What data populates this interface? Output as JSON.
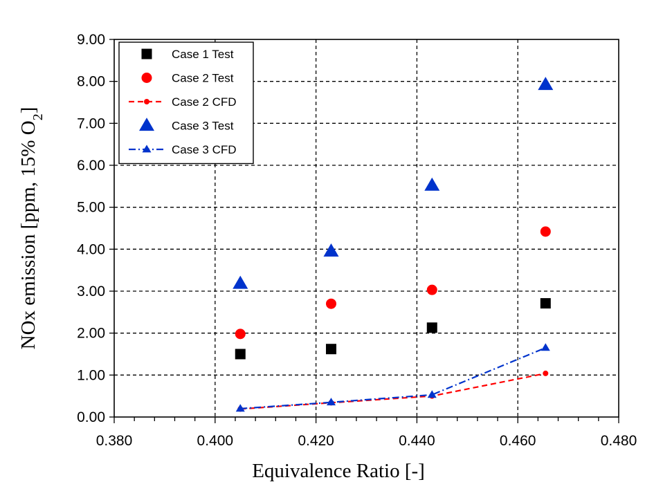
{
  "chart_data": {
    "type": "scatter",
    "title": "",
    "xlabel": "Equivalence Ratio [-]",
    "ylabel": {
      "prefix": "NOx emission [ppm, 15% O",
      "subscript": "2",
      "suffix": "]"
    },
    "xlim": [
      0.38,
      0.48
    ],
    "ylim": [
      0,
      9
    ],
    "x_ticks": [
      "0.380",
      "0.400",
      "0.420",
      "0.440",
      "0.460",
      "0.480"
    ],
    "y_ticks": [
      "0.00",
      "1.00",
      "2.00",
      "3.00",
      "4.00",
      "5.00",
      "6.00",
      "7.00",
      "8.00",
      "9.00"
    ],
    "grid": true,
    "legend_position": "top-left",
    "series": [
      {
        "name": "Case 1 Test",
        "style": "marker",
        "marker": "square",
        "color": "#000000",
        "x": [
          0.405,
          0.423,
          0.443,
          0.4655
        ],
        "y": [
          1.5,
          1.62,
          2.13,
          2.71
        ]
      },
      {
        "name": "Case 2 Test",
        "style": "marker",
        "marker": "circle",
        "color": "#ff0000",
        "x": [
          0.405,
          0.423,
          0.443,
          0.4655
        ],
        "y": [
          1.98,
          2.7,
          3.03,
          4.42
        ]
      },
      {
        "name": "Case 2 CFD",
        "style": "line-marker",
        "marker": "circle-small",
        "line": "dashed",
        "color": "#ff0000",
        "x": [
          0.405,
          0.423,
          0.443,
          0.4655
        ],
        "y": [
          0.19,
          0.34,
          0.5,
          1.04
        ]
      },
      {
        "name": "Case 3 Test",
        "style": "marker",
        "marker": "triangle",
        "color": "#0033cc",
        "x": [
          0.405,
          0.423,
          0.443,
          0.4655
        ],
        "y": [
          3.18,
          3.95,
          5.52,
          7.92
        ]
      },
      {
        "name": "Case 3 CFD",
        "style": "line-marker",
        "marker": "triangle-small",
        "line": "dashdot",
        "color": "#0033cc",
        "x": [
          0.405,
          0.423,
          0.443,
          0.4655
        ],
        "y": [
          0.2,
          0.35,
          0.53,
          1.65
        ]
      }
    ]
  }
}
